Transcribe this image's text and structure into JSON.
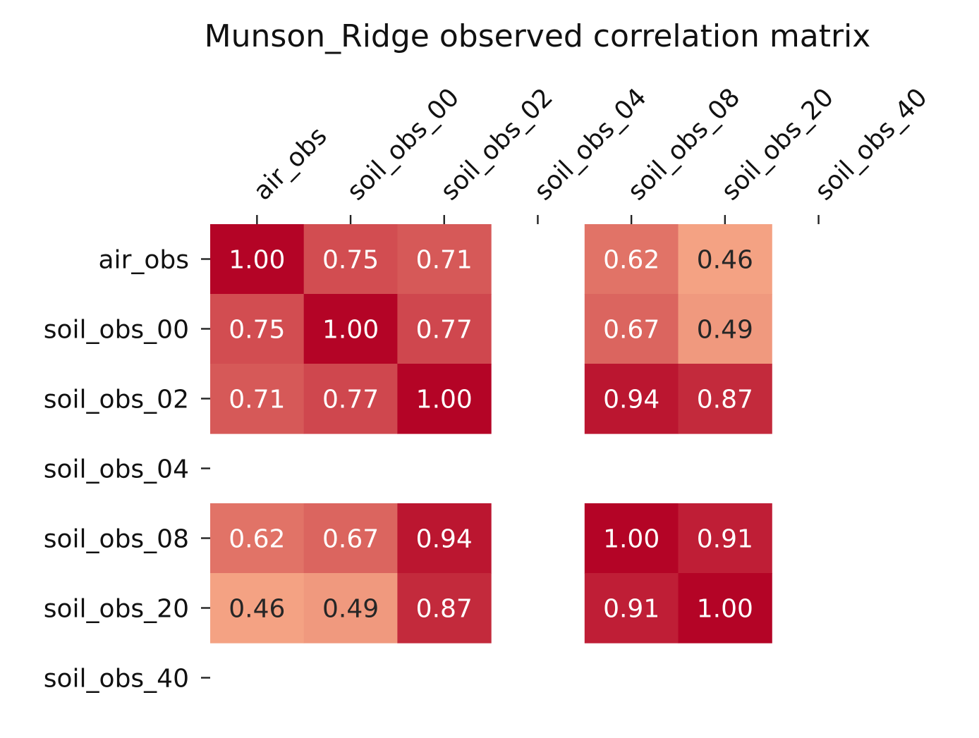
{
  "chart_data": {
    "type": "heatmap",
    "title": "Munson_Ridge observed correlation matrix",
    "x_labels": [
      "air_obs",
      "soil_obs_00",
      "soil_obs_02",
      "soil_obs_04",
      "soil_obs_08",
      "soil_obs_20",
      "soil_obs_40"
    ],
    "y_labels": [
      "air_obs",
      "soil_obs_00",
      "soil_obs_02",
      "soil_obs_04",
      "soil_obs_08",
      "soil_obs_20",
      "soil_obs_40"
    ],
    "values": [
      [
        1.0,
        0.75,
        0.71,
        null,
        0.62,
        0.46,
        null
      ],
      [
        0.75,
        1.0,
        0.77,
        null,
        0.67,
        0.49,
        null
      ],
      [
        0.71,
        0.77,
        1.0,
        null,
        0.94,
        0.87,
        null
      ],
      [
        null,
        null,
        null,
        null,
        null,
        null,
        null
      ],
      [
        0.62,
        0.67,
        0.94,
        null,
        1.0,
        0.91,
        null
      ],
      [
        0.46,
        0.49,
        0.87,
        null,
        0.91,
        1.0,
        null
      ],
      [
        null,
        null,
        null,
        null,
        null,
        null,
        null
      ]
    ],
    "value_format": "0.00",
    "colormap": "coolwarm (red end)",
    "colors": {
      "high": "#b40426",
      "low": "#f4a283",
      "text_dark": "#262626",
      "text_light": "#ffffff"
    },
    "colorbar": false,
    "grid": false,
    "x_tick_position": "top"
  }
}
